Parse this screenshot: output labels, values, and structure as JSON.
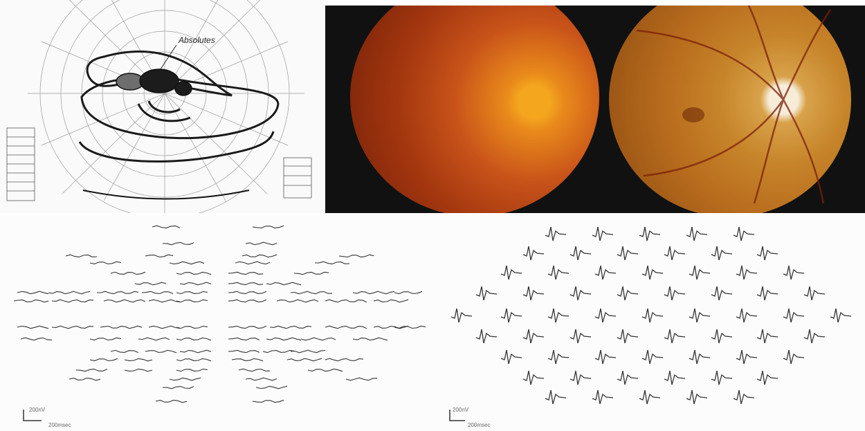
{
  "perimetry": {
    "annotation": "Absolutes"
  },
  "fundus": {
    "left_eye": "fundus-left",
    "right_eye": "fundus-right"
  },
  "mferg": {
    "left_panel": {
      "scale_y": "200nV",
      "scale_x": "200msec"
    },
    "right_panel": {
      "scale_y": "200nV",
      "scale_x": "200msec"
    }
  },
  "colors": {
    "trace": "#333333",
    "iso_line": "#222222",
    "fundus_bg": "#111111"
  }
}
